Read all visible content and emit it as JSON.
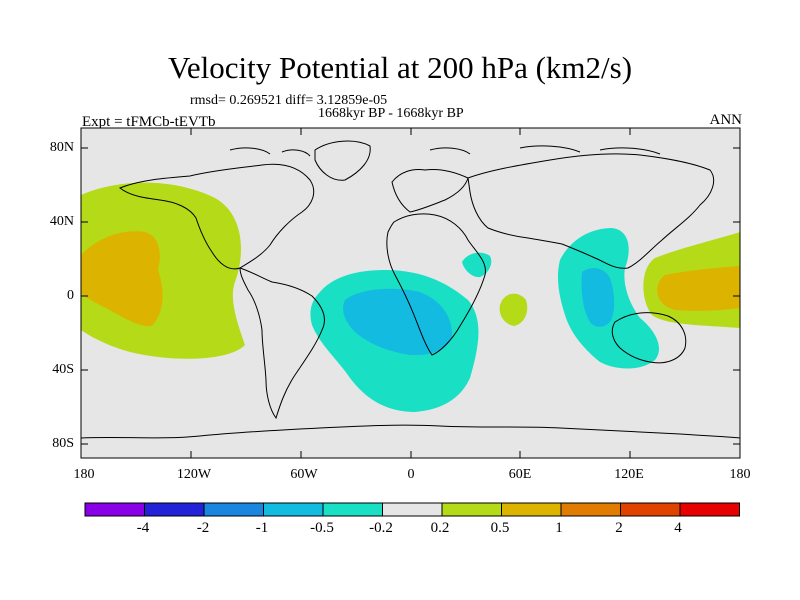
{
  "title": "Velocity Potential at 200 hPa (km2/s)",
  "stats_line": "rmsd= 0.269521  diff= 3.12859e-05",
  "period_line": "1668kyr BP - 1668kyr BP",
  "left_label": "Expt = tFMCb-tEVTb",
  "right_label": "ANN",
  "colors": {
    "background": "#e6e6e6",
    "land_lines": "#000000",
    "levels": [
      "#8a00e6",
      "#2222d8",
      "#1a86e0",
      "#14bbe0",
      "#19e0c4",
      "#e6e6e6",
      "#b4da18",
      "#dcb400",
      "#e07d00",
      "#e04200",
      "#e60000"
    ]
  },
  "map": {
    "y_ticks": [
      "80N",
      "40N",
      "0",
      "40S",
      "80S"
    ],
    "x_ticks": [
      "180",
      "120W",
      "60W",
      "0",
      "60E",
      "120E",
      "180"
    ]
  },
  "colorbar": {
    "labels": [
      "-4",
      "-2",
      "-1",
      "-0.5",
      "-0.2",
      "0.2",
      "0.5",
      "1",
      "2",
      "4"
    ]
  }
}
